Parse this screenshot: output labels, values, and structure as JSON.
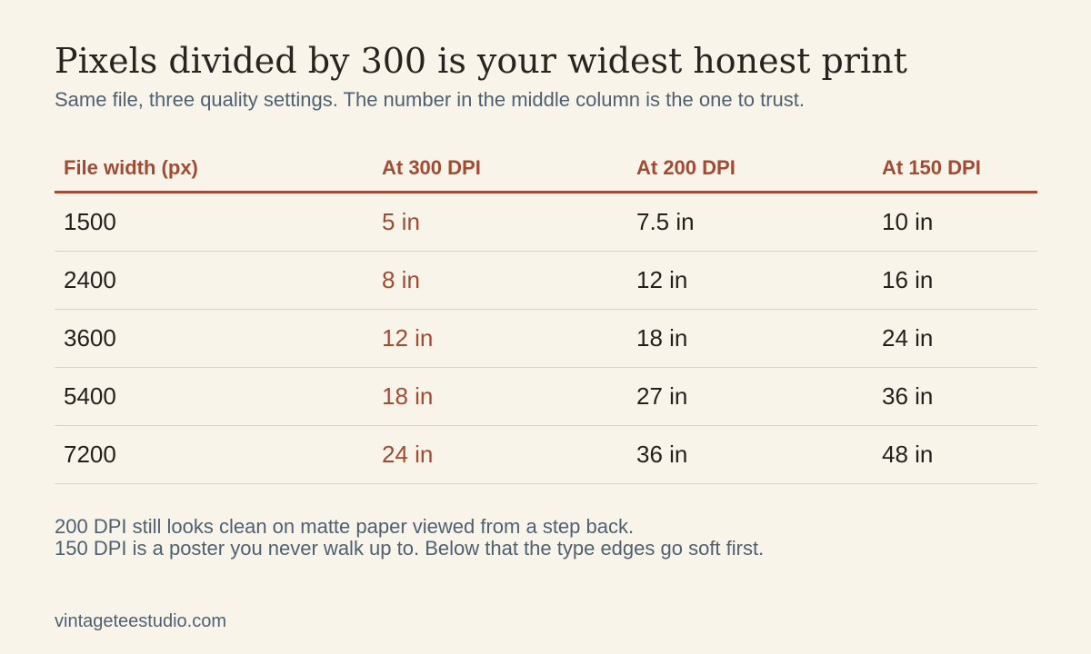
{
  "title": "Pixels divided by 300 is your widest honest print",
  "subtitle": "Same file, three quality settings. The number in the middle column is the one to trust.",
  "table": {
    "headers": [
      "File width (px)",
      "At 300 DPI",
      "At 200 DPI",
      "At 150 DPI"
    ],
    "rows": [
      [
        "1500",
        "5 in",
        "7.5 in",
        "10 in"
      ],
      [
        "2400",
        "8 in",
        "12 in",
        "16 in"
      ],
      [
        "3600",
        "12 in",
        "18 in",
        "24 in"
      ],
      [
        "5400",
        "18 in",
        "27 in",
        "36 in"
      ],
      [
        "7200",
        "24 in",
        "36 in",
        "48 in"
      ]
    ]
  },
  "notes": [
    "200 DPI still looks clean on matte paper viewed from a step back.",
    "150 DPI is a poster you never walk up to. Below that the type edges go soft first."
  ],
  "footer": "vintageteestudio.com",
  "colors": {
    "background": "#f9f4ea",
    "accent": "#a34a33",
    "text": "#231f1c",
    "muted": "#4f6170",
    "divider": "#d8d3c4"
  }
}
